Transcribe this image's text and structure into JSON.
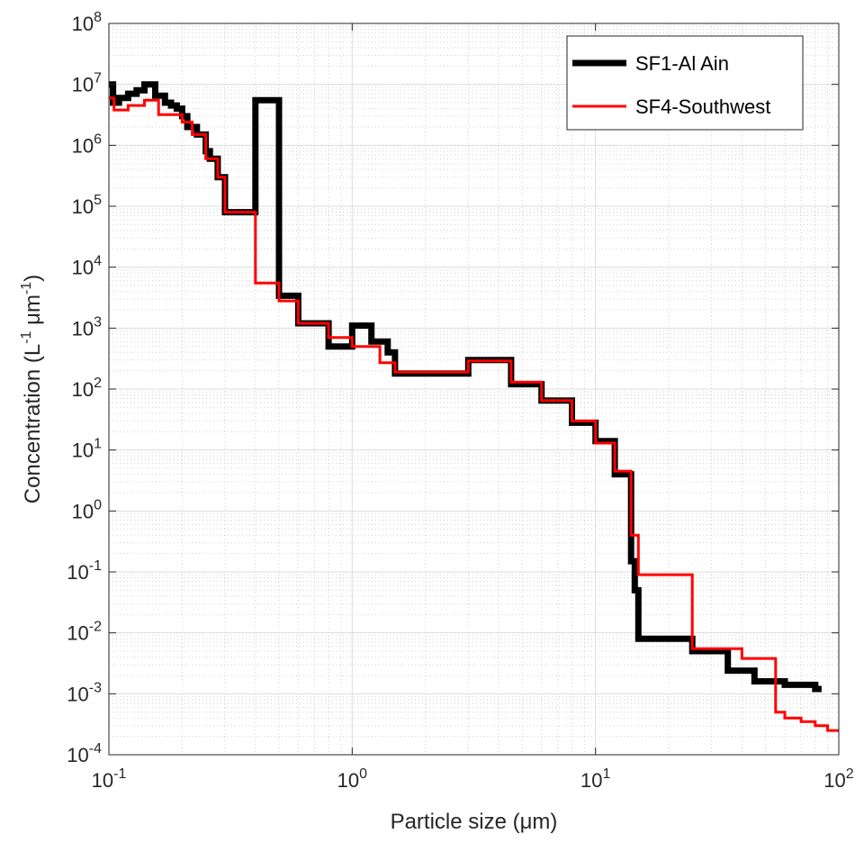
{
  "chart_data": {
    "type": "line",
    "plot_style": "stairs",
    "xscale": "log",
    "yscale": "log",
    "xlim": [
      0.1,
      100
    ],
    "ylim": [
      0.0001,
      100000000
    ],
    "grid": true,
    "minor_grid": true,
    "legend_position": "top-right",
    "xlabel": "Particle size (μm)",
    "ylabel": {
      "base": "Concentration (L",
      "exp1": "-1",
      "mid": " μm",
      "exp2": "-1",
      "end": ")"
    },
    "x_ticks": [
      {
        "value": 0.1,
        "base": "10",
        "exp": "-1"
      },
      {
        "value": 1,
        "base": "10",
        "exp": "0"
      },
      {
        "value": 10,
        "base": "10",
        "exp": "1"
      },
      {
        "value": 100,
        "base": "10",
        "exp": "2"
      }
    ],
    "y_ticks": [
      {
        "value": 0.0001,
        "base": "10",
        "exp": "-4"
      },
      {
        "value": 0.001,
        "base": "10",
        "exp": "-3"
      },
      {
        "value": 0.01,
        "base": "10",
        "exp": "-2"
      },
      {
        "value": 0.1,
        "base": "10",
        "exp": "-1"
      },
      {
        "value": 1,
        "base": "10",
        "exp": "0"
      },
      {
        "value": 10,
        "base": "10",
        "exp": "1"
      },
      {
        "value": 100,
        "base": "10",
        "exp": "2"
      },
      {
        "value": 1000,
        "base": "10",
        "exp": "3"
      },
      {
        "value": 10000,
        "base": "10",
        "exp": "4"
      },
      {
        "value": 100000,
        "base": "10",
        "exp": "5"
      },
      {
        "value": 1000000,
        "base": "10",
        "exp": "6"
      },
      {
        "value": 10000000,
        "base": "10",
        "exp": "7"
      },
      {
        "value": 100000000,
        "base": "10",
        "exp": "8"
      }
    ],
    "series": [
      {
        "name": "SF1-Al Ain",
        "color": "#000000",
        "line_width": "thick",
        "x": [
          0.1,
          0.104,
          0.11,
          0.12,
          0.13,
          0.14,
          0.155,
          0.17,
          0.18,
          0.19,
          0.2,
          0.21,
          0.23,
          0.25,
          0.26,
          0.28,
          0.3,
          0.4,
          0.5,
          0.6,
          0.8,
          1.0,
          1.2,
          1.4,
          1.5,
          3.0,
          4.5,
          6.0,
          8.0,
          10.0,
          12.0,
          14.0,
          14.5,
          15.0,
          25.0,
          35.0,
          45.0,
          60.0,
          80.0
        ],
        "y": [
          10000000,
          5000000,
          6000000,
          7000000,
          8000000,
          10000000,
          6500000,
          5000000,
          4500000,
          4000000,
          3000000,
          2000000,
          1500000,
          800000,
          600000,
          300000,
          80000,
          5500000,
          3400,
          1200,
          500,
          1100,
          600,
          400,
          180,
          300,
          120,
          65,
          28,
          14,
          4,
          0.15,
          0.05,
          0.008,
          0.005,
          0.0024,
          0.0016,
          0.0014,
          0.0012
        ],
        "x_end": 85
      },
      {
        "name": "SF4-Southwest",
        "color": "#ff0000",
        "line_width": "thin",
        "x": [
          0.1,
          0.105,
          0.12,
          0.14,
          0.16,
          0.2,
          0.22,
          0.25,
          0.28,
          0.3,
          0.4,
          0.5,
          0.6,
          0.8,
          1.0,
          1.3,
          1.5,
          3.0,
          4.5,
          6.0,
          8.0,
          10.0,
          12.0,
          14.0,
          15.0,
          25.0,
          40.0,
          55.0,
          60.0,
          70.0,
          80.0,
          90.0
        ],
        "y": [
          6000000,
          3800000,
          4500000,
          5500000,
          3200000,
          2400000,
          1500000,
          600000,
          300000,
          80000,
          5500,
          2800,
          1200,
          700,
          500,
          270,
          190,
          290,
          130,
          65,
          30,
          13,
          4.5,
          0.4,
          0.09,
          0.0055,
          0.0038,
          0.0005,
          0.0004,
          0.00035,
          0.0003,
          0.00025
        ],
        "x_end": 100
      }
    ]
  }
}
